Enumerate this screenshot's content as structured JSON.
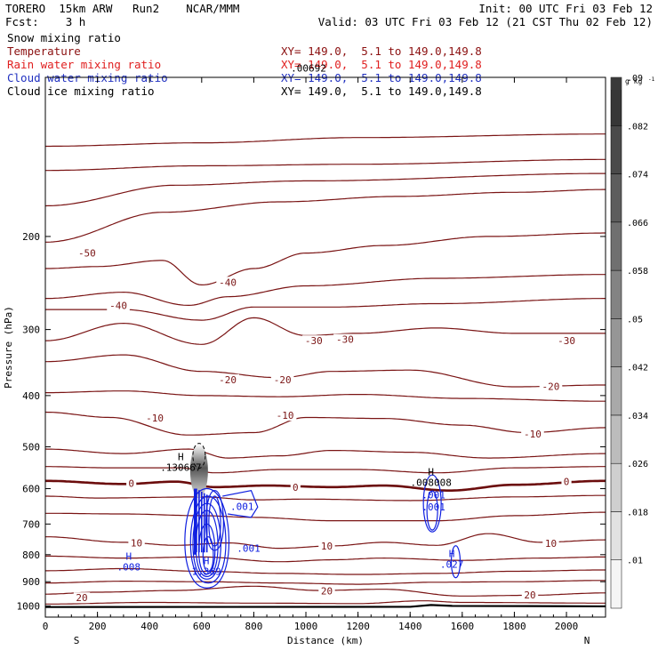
{
  "header": {
    "model": "TORERO  15km ARW   Run2    NCAR/MMM",
    "init": "Init: 00 UTC Fri 03 Feb 12",
    "fcst": "Fcst:    3 h",
    "valid": "Valid: 03 UTC Fri 03 Feb 12 (21 CST Thu 02 Feb 12)"
  },
  "fields": [
    {
      "name": "Snow mixing ratio",
      "xy": "",
      "color": "#000000"
    },
    {
      "name": "Temperature",
      "xy": "XY= 149.0,  5.1 to 149.0,149.8",
      "color": "#8b1010"
    },
    {
      "name": "Rain water mixing ratio",
      "xy": "XY= 149.0,  5.1 to 149.0,149.8",
      "color": "#e02020"
    },
    {
      "name": "Cloud water mixing ratio",
      "xy": "XY= 149.0,  5.1 to 149.0,149.8",
      "color": "#2030c0"
    },
    {
      "name": "Cloud ice mixing ratio",
      "xy": "XY= 149.0,  5.1 to 149.0,149.8",
      "color": "#000000"
    }
  ],
  "colors": {
    "temperature": "#7a1414",
    "freezing": "#6b0c0c",
    "cloud_water": "#1020e0",
    "terrain": "#000000"
  },
  "chart_data": {
    "type": "contour",
    "xlabel": "Distance (km)",
    "ylabel": "Pressure (hPa)",
    "xlim": [
      0,
      2150
    ],
    "ylim": [
      1050,
      100
    ],
    "x_ticks": [
      0,
      200,
      400,
      600,
      800,
      1000,
      1200,
      1400,
      1600,
      1800,
      2000
    ],
    "y_ticks": [
      200,
      300,
      400,
      500,
      600,
      700,
      800,
      900,
      1000
    ],
    "end_labels": {
      "left": "S",
      "right": "N"
    },
    "colorbar": {
      "unit": "g kg",
      "unit_exp": "-1",
      "ticks": [
        ".01",
        ".018",
        ".026",
        ".034",
        ".042",
        ".05",
        ".058",
        ".066",
        ".074",
        ".082",
        ".09"
      ]
    },
    "temperature_contours": [
      {
        "t": -50,
        "labels": [
          {
            "x": 160,
            "p": 215
          }
        ]
      },
      {
        "t": -40,
        "labels": [
          {
            "x": 280,
            "p": 270
          },
          {
            "x": 700,
            "p": 244
          }
        ]
      },
      {
        "t": -30,
        "labels": [
          {
            "x": 1030,
            "p": 315
          },
          {
            "x": 1150,
            "p": 313
          },
          {
            "x": 2000,
            "p": 315
          }
        ]
      },
      {
        "t": -20,
        "labels": [
          {
            "x": 700,
            "p": 373
          },
          {
            "x": 910,
            "p": 373
          },
          {
            "x": 1940,
            "p": 384
          }
        ]
      },
      {
        "t": -10,
        "labels": [
          {
            "x": 420,
            "p": 441
          },
          {
            "x": 920,
            "p": 436
          },
          {
            "x": 1870,
            "p": 473
          }
        ]
      },
      {
        "t": 0,
        "labels": [
          {
            "x": 330,
            "p": 586
          },
          {
            "x": 960,
            "p": 596
          },
          {
            "x": 2000,
            "p": 582
          }
        ]
      },
      {
        "t": 10,
        "labels": [
          {
            "x": 350,
            "p": 760
          },
          {
            "x": 1080,
            "p": 770
          },
          {
            "x": 1940,
            "p": 761
          }
        ]
      },
      {
        "t": 20,
        "labels": [
          {
            "x": 140,
            "p": 965
          },
          {
            "x": 1080,
            "p": 937
          },
          {
            "x": 1860,
            "p": 953
          }
        ]
      }
    ],
    "annotations": [
      {
        "kind": "H",
        "x": 520,
        "p": 530,
        "value": ".130667",
        "color": "#000000"
      },
      {
        "kind": "H",
        "x": 1480,
        "p": 566,
        "value": ".008008",
        "color": "#000000"
      },
      {
        "kind": "label",
        "x": 1010,
        "p": 96,
        "value": ".00692",
        "color": "#000000"
      },
      {
        "kind": "label",
        "x": 755,
        "p": 648,
        "value": ".001",
        "color": "#1020e0"
      },
      {
        "kind": "label",
        "x": 780,
        "p": 777,
        "value": ".001",
        "color": "#1020e0"
      },
      {
        "kind": "label",
        "x": 1490,
        "p": 616,
        "value": ".001",
        "color": "#1020e0"
      },
      {
        "kind": "label",
        "x": 1490,
        "p": 650,
        "value": ".001",
        "color": "#1020e0"
      },
      {
        "kind": "H",
        "x": 320,
        "p": 818,
        "value": ".008",
        "color": "#1020e0"
      },
      {
        "kind": "H",
        "x": 618,
        "p": 834,
        "value": "1.369",
        "color": "#1020e0"
      },
      {
        "kind": "H",
        "x": 1560,
        "p": 808,
        "value": ".027",
        "color": "#1020e0"
      }
    ]
  }
}
